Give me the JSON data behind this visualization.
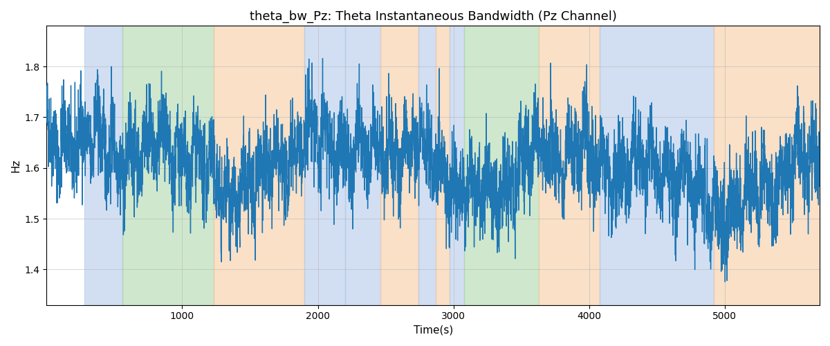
{
  "title": "theta_bw_Pz: Theta Instantaneous Bandwidth (Pz Channel)",
  "xlabel": "Time(s)",
  "ylabel": "Hz",
  "xlim": [
    0,
    5700
  ],
  "ylim": [
    1.33,
    1.88
  ],
  "yticks": [
    1.4,
    1.5,
    1.6,
    1.7,
    1.8
  ],
  "xticks": [
    1000,
    2000,
    3000,
    4000,
    5000
  ],
  "line_color": "#1f77b4",
  "line_width": 1.0,
  "background_color": "#ffffff",
  "grid_color": "#b0b0b0",
  "title_fontsize": 13,
  "label_fontsize": 11,
  "colored_bands": [
    {
      "xmin": 280,
      "xmax": 560,
      "color": "#aec6e8",
      "alpha": 0.55
    },
    {
      "xmin": 560,
      "xmax": 1230,
      "color": "#a8d5a2",
      "alpha": 0.55
    },
    {
      "xmin": 1230,
      "xmax": 1900,
      "color": "#f5c89a",
      "alpha": 0.55
    },
    {
      "xmin": 1900,
      "xmax": 2200,
      "color": "#aec6e8",
      "alpha": 0.55
    },
    {
      "xmin": 2200,
      "xmax": 2460,
      "color": "#aec6e8",
      "alpha": 0.55
    },
    {
      "xmin": 2460,
      "xmax": 2740,
      "color": "#f5c89a",
      "alpha": 0.55
    },
    {
      "xmin": 2740,
      "xmax": 2870,
      "color": "#aec6e8",
      "alpha": 0.55
    },
    {
      "xmin": 2870,
      "xmax": 2970,
      "color": "#f5c89a",
      "alpha": 0.55
    },
    {
      "xmin": 2970,
      "xmax": 3080,
      "color": "#aec6e8",
      "alpha": 0.55
    },
    {
      "xmin": 3080,
      "xmax": 3630,
      "color": "#a8d5a2",
      "alpha": 0.55
    },
    {
      "xmin": 3630,
      "xmax": 4080,
      "color": "#f5c89a",
      "alpha": 0.55
    },
    {
      "xmin": 4080,
      "xmax": 4920,
      "color": "#aec6e8",
      "alpha": 0.55
    },
    {
      "xmin": 4920,
      "xmax": 5700,
      "color": "#f5c89a",
      "alpha": 0.55
    }
  ],
  "seed": 42,
  "n_points": 5700
}
